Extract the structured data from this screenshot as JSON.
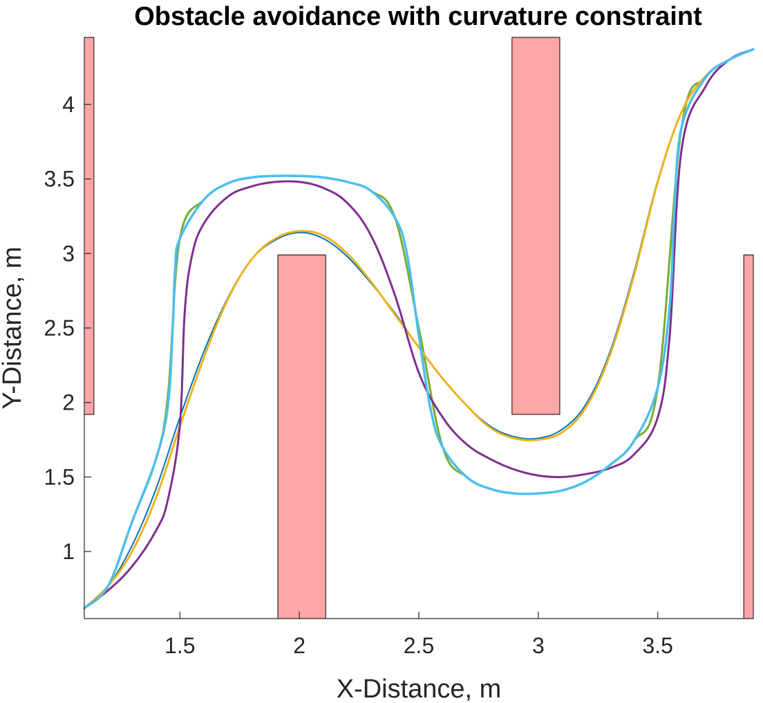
{
  "chart_data": {
    "type": "line",
    "title": "Obstacle avoidance with curvature constraint",
    "xlabel": "X-Distance, m",
    "ylabel": "Y-Distance, m",
    "xlim": [
      1.1,
      3.9
    ],
    "ylim": [
      0.55,
      4.45
    ],
    "xticks": [
      1.5,
      2,
      2.5,
      3,
      3.5
    ],
    "xtick_labels": [
      "1.5",
      "2",
      "2.5",
      "3",
      "3.5"
    ],
    "yticks": [
      1,
      1.5,
      2,
      2.5,
      3,
      3.5,
      4
    ],
    "ytick_labels": [
      "1",
      "1.5",
      "2",
      "2.5",
      "3",
      "3.5",
      "4"
    ],
    "grid": false,
    "obstacles": [
      {
        "x": [
          1.1,
          1.14
        ],
        "y": [
          1.92,
          4.45
        ],
        "color": "#ffa6a6"
      },
      {
        "x": [
          1.91,
          2.11
        ],
        "y": [
          0.55,
          2.99
        ],
        "color": "#ffa6a6"
      },
      {
        "x": [
          2.89,
          3.09
        ],
        "y": [
          1.92,
          4.45
        ],
        "color": "#ffa6a6"
      },
      {
        "x": [
          3.86,
          3.9
        ],
        "y": [
          0.55,
          2.99
        ],
        "color": "#ffa6a6"
      }
    ],
    "series": [
      {
        "color": "#0072bd",
        "width": 2,
        "x": [
          1.1,
          1.2,
          1.3,
          1.4,
          1.5,
          1.6,
          1.7,
          1.8,
          1.9,
          2.0,
          2.1,
          2.2,
          2.3,
          2.4,
          2.5,
          2.6,
          2.7,
          2.8,
          2.9,
          3.0,
          3.1,
          3.2,
          3.3,
          3.4,
          3.5,
          3.6,
          3.7,
          3.8,
          3.9
        ],
        "y": [
          0.62,
          0.77,
          1.04,
          1.42,
          1.9,
          2.34,
          2.7,
          2.96,
          3.09,
          3.14,
          3.1,
          2.98,
          2.8,
          2.6,
          2.37,
          2.16,
          1.98,
          1.84,
          1.77,
          1.76,
          1.82,
          1.99,
          2.34,
          2.87,
          3.49,
          3.95,
          4.19,
          4.3,
          4.37
        ]
      },
      {
        "color": "#77ac30",
        "width": 3,
        "x": [
          1.1,
          1.2,
          1.3,
          1.4,
          1.45,
          1.5,
          1.6,
          1.7,
          1.8,
          1.9,
          2.0,
          2.1,
          2.2,
          2.3,
          2.4,
          2.5,
          2.6,
          2.7,
          2.8,
          2.9,
          3.0,
          3.1,
          3.2,
          3.3,
          3.4,
          3.5,
          3.6,
          3.7,
          3.8,
          3.9
        ],
        "y": [
          0.62,
          0.77,
          1.2,
          1.62,
          2.05,
          3.1,
          3.36,
          3.47,
          3.51,
          3.52,
          3.52,
          3.51,
          3.48,
          3.42,
          3.24,
          2.5,
          1.7,
          1.5,
          1.42,
          1.39,
          1.39,
          1.41,
          1.47,
          1.58,
          1.74,
          2.1,
          3.85,
          4.18,
          4.3,
          4.37
        ]
      },
      {
        "color": "#edb120",
        "width": 3,
        "x": [
          1.1,
          1.2,
          1.3,
          1.4,
          1.5,
          1.6,
          1.7,
          1.8,
          1.9,
          2.0,
          2.1,
          2.2,
          2.3,
          2.4,
          2.5,
          2.6,
          2.7,
          2.8,
          2.9,
          3.0,
          3.1,
          3.2,
          3.3,
          3.4,
          3.5,
          3.6,
          3.7,
          3.8,
          3.9
        ],
        "y": [
          0.62,
          0.77,
          1.0,
          1.36,
          1.84,
          2.3,
          2.69,
          2.96,
          3.1,
          3.15,
          3.12,
          3.0,
          2.81,
          2.59,
          2.37,
          2.16,
          1.98,
          1.83,
          1.76,
          1.75,
          1.8,
          1.97,
          2.32,
          2.85,
          3.48,
          3.95,
          4.19,
          4.3,
          4.37
        ]
      },
      {
        "color": "#7e2f8e",
        "width": 3,
        "x": [
          1.1,
          1.2,
          1.3,
          1.4,
          1.45,
          1.5,
          1.52,
          1.55,
          1.6,
          1.7,
          1.8,
          1.9,
          2.0,
          2.1,
          2.2,
          2.3,
          2.4,
          2.5,
          2.6,
          2.7,
          2.8,
          2.9,
          3.0,
          3.1,
          3.2,
          3.3,
          3.4,
          3.5,
          3.55,
          3.6,
          3.7,
          3.8,
          3.9
        ],
        "y": [
          0.62,
          0.74,
          0.9,
          1.14,
          1.35,
          1.85,
          2.6,
          2.98,
          3.2,
          3.38,
          3.45,
          3.48,
          3.48,
          3.44,
          3.34,
          3.12,
          2.72,
          2.2,
          1.9,
          1.72,
          1.62,
          1.55,
          1.51,
          1.5,
          1.52,
          1.56,
          1.65,
          1.9,
          2.45,
          3.7,
          4.12,
          4.3,
          4.37
        ]
      },
      {
        "color": "#4dbeee",
        "width": 3.5,
        "x": [
          1.1,
          1.2,
          1.3,
          1.4,
          1.45,
          1.47,
          1.48,
          1.5,
          1.6,
          1.7,
          1.8,
          1.9,
          2.0,
          2.1,
          2.2,
          2.3,
          2.4,
          2.45,
          2.5,
          2.55,
          2.6,
          2.7,
          2.8,
          2.9,
          3.0,
          3.1,
          3.2,
          3.3,
          3.4,
          3.5,
          3.55,
          3.57,
          3.6,
          3.7,
          3.8,
          3.9
        ],
        "y": [
          0.62,
          0.77,
          1.2,
          1.62,
          1.98,
          2.5,
          2.9,
          3.1,
          3.36,
          3.47,
          3.51,
          3.52,
          3.52,
          3.51,
          3.48,
          3.42,
          3.24,
          3.0,
          2.45,
          1.95,
          1.7,
          1.5,
          1.42,
          1.39,
          1.39,
          1.41,
          1.47,
          1.58,
          1.74,
          2.1,
          2.65,
          3.3,
          3.85,
          4.18,
          4.3,
          4.37
        ]
      }
    ]
  }
}
